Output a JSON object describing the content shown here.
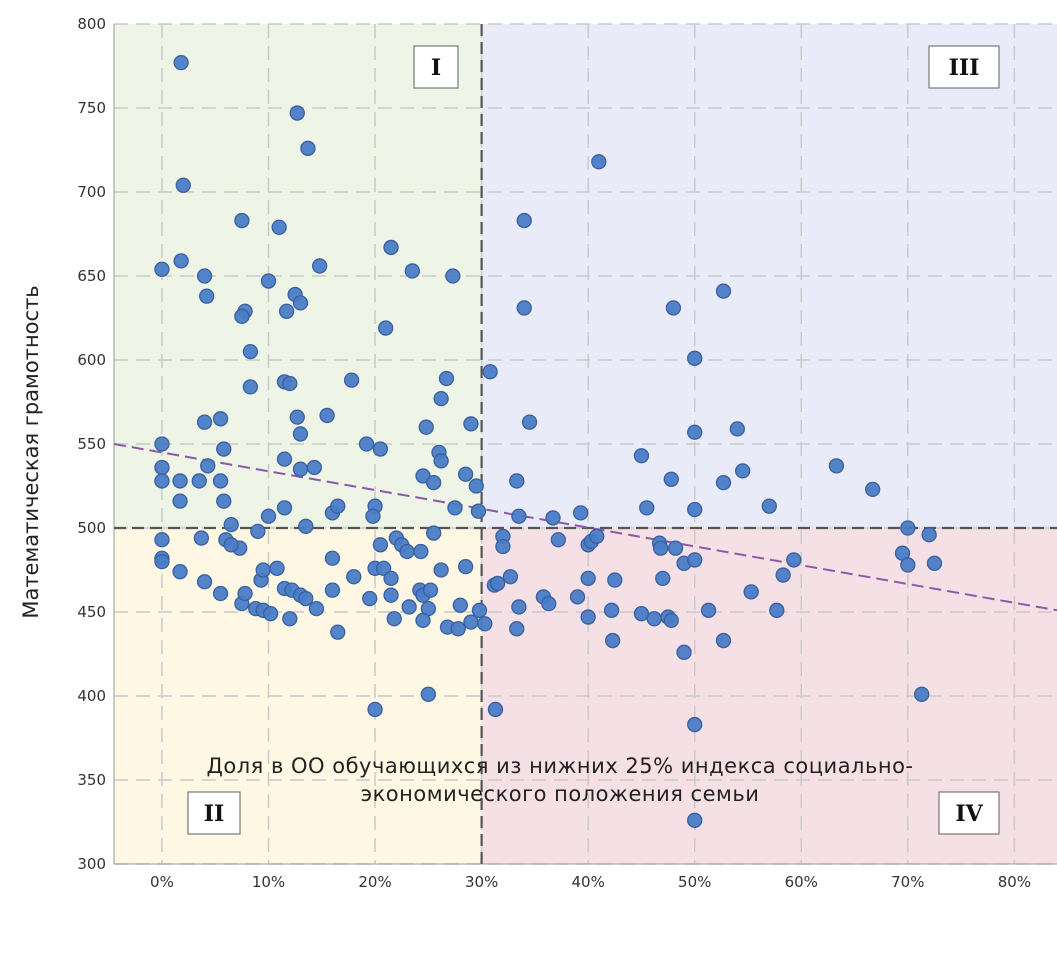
{
  "chart_data": {
    "type": "scatter",
    "xlabel_line1": "Доля в ОО обучающихся из нижних 25% индекса социально-",
    "xlabel_line2": "экономического положения семьи",
    "ylabel": "Математическая грамотность",
    "xlim": [
      -0.045,
      0.84
    ],
    "ylim": [
      300,
      800
    ],
    "x_ticks": [
      0,
      0.1,
      0.2,
      0.3,
      0.4,
      0.5,
      0.6,
      0.7,
      0.8
    ],
    "x_tick_labels": [
      "0%",
      "10%",
      "20%",
      "30%",
      "40%",
      "50%",
      "60%",
      "70%",
      "80%"
    ],
    "y_ticks": [
      300,
      350,
      400,
      450,
      500,
      550,
      600,
      650,
      700,
      750,
      800
    ],
    "y_tick_labels": [
      "300",
      "350",
      "400",
      "450",
      "500",
      "550",
      "600",
      "650",
      "700",
      "750",
      "800"
    ],
    "grid": true,
    "threshold_x": 0.3,
    "threshold_y": 500,
    "trendline": {
      "x": [
        -0.045,
        0.84
      ],
      "y": [
        550,
        451
      ]
    },
    "quadrants": [
      {
        "label": "I",
        "color": "#eef5e6",
        "x_range": [
          -0.045,
          0.3
        ],
        "y_range": [
          500,
          800
        ],
        "label_pos": "top-right"
      },
      {
        "label": "II",
        "color": "#fdf7e4",
        "x_range": [
          -0.045,
          0.3
        ],
        "y_range": [
          300,
          500
        ],
        "label_pos": "bottom-left"
      },
      {
        "label": "III",
        "color": "#e9ecf8",
        "x_range": [
          0.3,
          0.84
        ],
        "y_range": [
          500,
          800
        ],
        "label_pos": "top-right"
      },
      {
        "label": "IV",
        "color": "#f5e0e6",
        "x_range": [
          0.3,
          0.84
        ],
        "y_range": [
          300,
          500
        ],
        "label_pos": "bottom-right"
      }
    ],
    "marker_color": "#4a7cc7",
    "marker_edge": "#3a5f9e",
    "trend_color": "#8a5aa8",
    "points": [
      [
        0.018,
        777
      ],
      [
        0.127,
        747
      ],
      [
        0.137,
        726
      ],
      [
        0.02,
        704
      ],
      [
        0.075,
        683
      ],
      [
        0.11,
        679
      ],
      [
        0.0,
        654
      ],
      [
        0.018,
        659
      ],
      [
        0.04,
        650
      ],
      [
        0.042,
        638
      ],
      [
        0.1,
        647
      ],
      [
        0.148,
        656
      ],
      [
        0.215,
        667
      ],
      [
        0.235,
        653
      ],
      [
        0.273,
        650
      ],
      [
        0.078,
        629
      ],
      [
        0.075,
        626
      ],
      [
        0.117,
        629
      ],
      [
        0.125,
        639
      ],
      [
        0.13,
        634
      ],
      [
        0.083,
        605
      ],
      [
        0.21,
        619
      ],
      [
        0.083,
        584
      ],
      [
        0.115,
        587
      ],
      [
        0.12,
        586
      ],
      [
        0.178,
        588
      ],
      [
        0.262,
        577
      ],
      [
        0.267,
        589
      ],
      [
        0.04,
        563
      ],
      [
        0.055,
        565
      ],
      [
        0.127,
        566
      ],
      [
        0.13,
        556
      ],
      [
        0.155,
        567
      ],
      [
        0.248,
        560
      ],
      [
        0.29,
        562
      ],
      [
        0.0,
        550
      ],
      [
        0.058,
        547
      ],
      [
        0.0,
        536
      ],
      [
        0.0,
        528
      ],
      [
        0.043,
        537
      ],
      [
        0.017,
        528
      ],
      [
        0.035,
        528
      ],
      [
        0.017,
        516
      ],
      [
        0.058,
        516
      ],
      [
        0.055,
        528
      ],
      [
        0.115,
        541
      ],
      [
        0.13,
        535
      ],
      [
        0.143,
        536
      ],
      [
        0.192,
        550
      ],
      [
        0.205,
        547
      ],
      [
        0.245,
        531
      ],
      [
        0.26,
        545
      ],
      [
        0.262,
        540
      ],
      [
        0.255,
        527
      ],
      [
        0.285,
        532
      ],
      [
        0.295,
        525
      ],
      [
        0.297,
        510
      ],
      [
        0.275,
        512
      ],
      [
        0.2,
        513
      ],
      [
        0.198,
        507
      ],
      [
        0.16,
        509
      ],
      [
        0.165,
        513
      ],
      [
        0.115,
        512
      ],
      [
        0.1,
        507
      ],
      [
        0.135,
        501
      ],
      [
        0.09,
        498
      ],
      [
        0.065,
        502
      ],
      [
        0.06,
        493
      ],
      [
        0.255,
        497
      ],
      [
        0.0,
        493
      ],
      [
        0.0,
        482
      ],
      [
        0.0,
        480
      ],
      [
        0.037,
        494
      ],
      [
        0.073,
        488
      ],
      [
        0.065,
        490
      ],
      [
        0.16,
        482
      ],
      [
        0.205,
        490
      ],
      [
        0.22,
        494
      ],
      [
        0.225,
        490
      ],
      [
        0.23,
        486
      ],
      [
        0.243,
        486
      ],
      [
        0.017,
        474
      ],
      [
        0.04,
        468
      ],
      [
        0.055,
        461
      ],
      [
        0.075,
        455
      ],
      [
        0.078,
        461
      ],
      [
        0.093,
        469
      ],
      [
        0.095,
        475
      ],
      [
        0.108,
        476
      ],
      [
        0.115,
        464
      ],
      [
        0.122,
        463
      ],
      [
        0.13,
        460
      ],
      [
        0.135,
        458
      ],
      [
        0.145,
        452
      ],
      [
        0.16,
        463
      ],
      [
        0.18,
        471
      ],
      [
        0.2,
        476
      ],
      [
        0.208,
        476
      ],
      [
        0.215,
        470
      ],
      [
        0.215,
        460
      ],
      [
        0.242,
        463
      ],
      [
        0.245,
        460
      ],
      [
        0.252,
        463
      ],
      [
        0.262,
        475
      ],
      [
        0.285,
        477
      ],
      [
        0.088,
        452
      ],
      [
        0.095,
        451
      ],
      [
        0.102,
        449
      ],
      [
        0.12,
        446
      ],
      [
        0.195,
        458
      ],
      [
        0.232,
        453
      ],
      [
        0.25,
        452
      ],
      [
        0.218,
        446
      ],
      [
        0.245,
        445
      ],
      [
        0.268,
        441
      ],
      [
        0.278,
        440
      ],
      [
        0.28,
        454
      ],
      [
        0.29,
        444
      ],
      [
        0.298,
        451
      ],
      [
        0.303,
        443
      ],
      [
        0.165,
        438
      ],
      [
        0.2,
        392
      ],
      [
        0.25,
        401
      ],
      [
        0.308,
        593
      ],
      [
        0.32,
        495
      ],
      [
        0.32,
        489
      ],
      [
        0.312,
        466
      ],
      [
        0.315,
        467
      ],
      [
        0.327,
        471
      ],
      [
        0.313,
        392
      ],
      [
        0.333,
        528
      ],
      [
        0.335,
        507
      ],
      [
        0.335,
        453
      ],
      [
        0.333,
        440
      ],
      [
        0.34,
        683
      ],
      [
        0.34,
        631
      ],
      [
        0.345,
        563
      ],
      [
        0.358,
        459
      ],
      [
        0.363,
        455
      ],
      [
        0.367,
        506
      ],
      [
        0.372,
        493
      ],
      [
        0.393,
        509
      ],
      [
        0.39,
        459
      ],
      [
        0.4,
        490
      ],
      [
        0.403,
        492
      ],
      [
        0.4,
        470
      ],
      [
        0.4,
        447
      ],
      [
        0.408,
        495
      ],
      [
        0.41,
        718
      ],
      [
        0.422,
        451
      ],
      [
        0.423,
        433
      ],
      [
        0.425,
        469
      ],
      [
        0.45,
        543
      ],
      [
        0.45,
        449
      ],
      [
        0.455,
        512
      ],
      [
        0.462,
        446
      ],
      [
        0.467,
        491
      ],
      [
        0.468,
        488
      ],
      [
        0.47,
        470
      ],
      [
        0.475,
        447
      ],
      [
        0.478,
        529
      ],
      [
        0.48,
        631
      ],
      [
        0.478,
        445
      ],
      [
        0.482,
        488
      ],
      [
        0.49,
        479
      ],
      [
        0.49,
        426
      ],
      [
        0.5,
        601
      ],
      [
        0.5,
        557
      ],
      [
        0.5,
        511
      ],
      [
        0.5,
        481
      ],
      [
        0.5,
        383
      ],
      [
        0.5,
        326
      ],
      [
        0.513,
        451
      ],
      [
        0.527,
        641
      ],
      [
        0.527,
        527
      ],
      [
        0.527,
        433
      ],
      [
        0.54,
        559
      ],
      [
        0.545,
        534
      ],
      [
        0.553,
        462
      ],
      [
        0.57,
        513
      ],
      [
        0.577,
        451
      ],
      [
        0.583,
        472
      ],
      [
        0.593,
        481
      ],
      [
        0.633,
        537
      ],
      [
        0.667,
        523
      ],
      [
        0.695,
        485
      ],
      [
        0.7,
        500
      ],
      [
        0.7,
        478
      ],
      [
        0.713,
        401
      ],
      [
        0.72,
        496
      ],
      [
        0.725,
        479
      ]
    ]
  }
}
